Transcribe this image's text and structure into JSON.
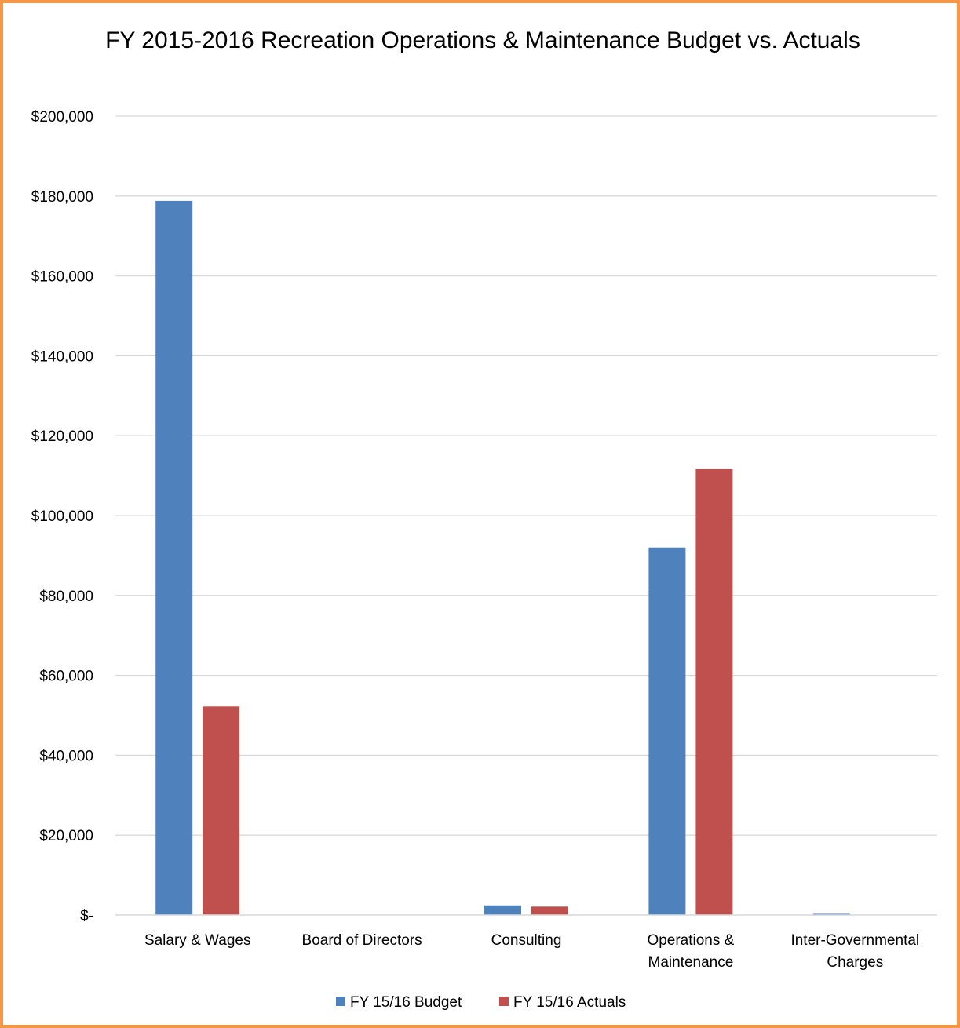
{
  "chart_data": {
    "type": "bar",
    "title": "FY 2015-2016 Recreation Operations & Maintenance Budget vs. Actuals",
    "xlabel": "",
    "ylabel": "",
    "categories": [
      [
        "Salary & Wages"
      ],
      [
        "Board of Directors"
      ],
      [
        "Consulting"
      ],
      [
        "Operations &",
        "Maintenance"
      ],
      [
        "Inter-Governmental",
        "Charges"
      ]
    ],
    "series": [
      {
        "name": "FY 15/16 Budget",
        "color": "#4F81BD",
        "values": [
          178800,
          0,
          2400,
          92000,
          300
        ]
      },
      {
        "name": "FY 15/16 Actuals",
        "color": "#C0504D",
        "values": [
          52200,
          0,
          2100,
          111600,
          0
        ]
      }
    ],
    "ylim": [
      0,
      200000
    ],
    "yticks": [
      0,
      20000,
      40000,
      60000,
      80000,
      100000,
      120000,
      140000,
      160000,
      180000,
      200000
    ],
    "ytick_labels": [
      "$-",
      "$20,000",
      "$40,000",
      "$60,000",
      "$80,000",
      "$100,000",
      "$120,000",
      "$140,000",
      "$160,000",
      "$180,000",
      "$200,000"
    ],
    "grid": true,
    "legend_position": "bottom"
  }
}
